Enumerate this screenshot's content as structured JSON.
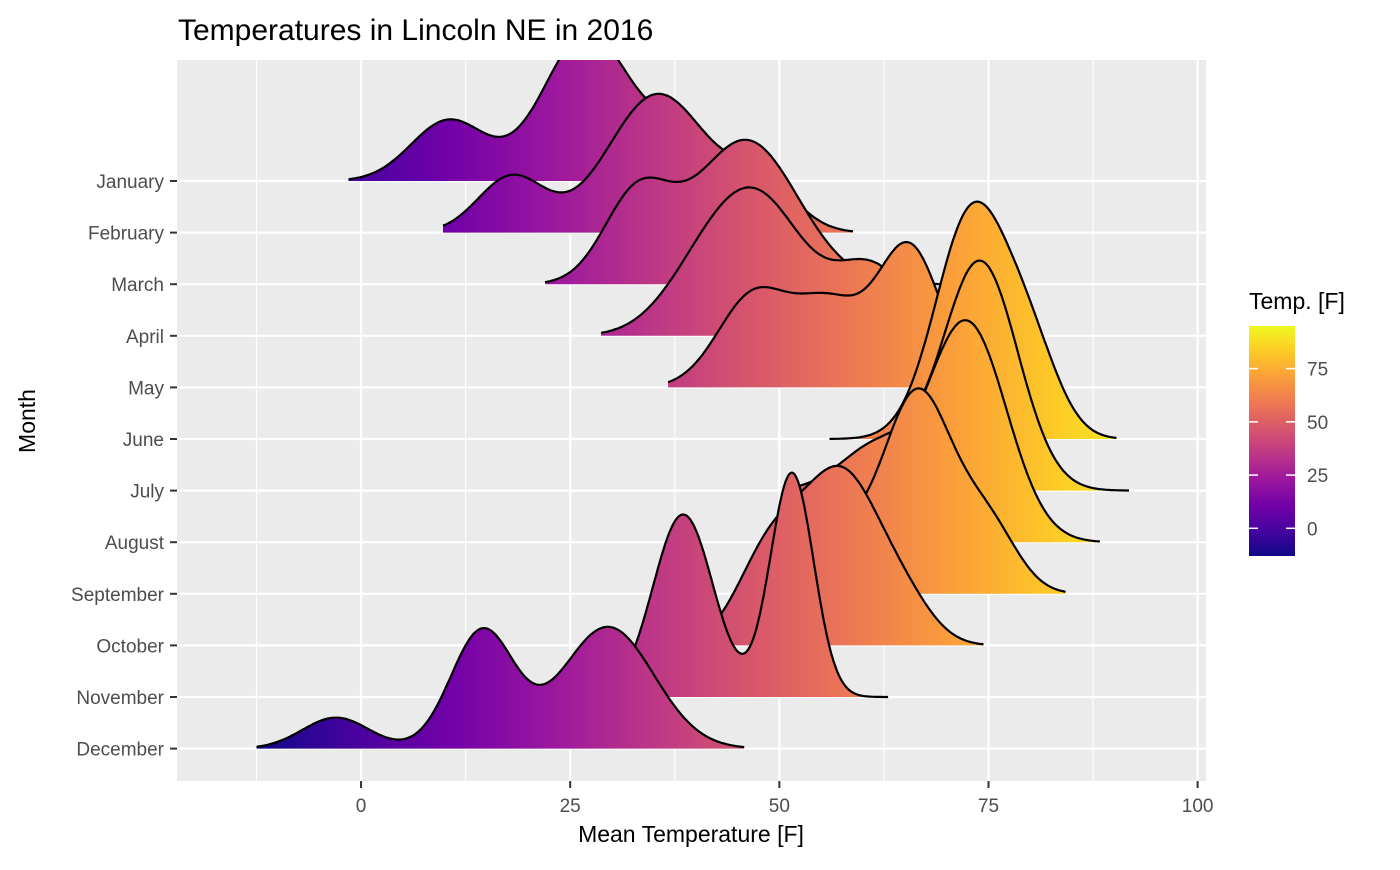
{
  "chart_data": {
    "type": "ridgeline",
    "title": "Temperatures in Lincoln NE in 2016",
    "xlabel": "Mean Temperature [F]",
    "ylabel": "Month",
    "xlim": [
      -22,
      101
    ],
    "x_ticks": [
      0,
      25,
      50,
      75,
      100
    ],
    "x_tick_labels": [
      "0",
      "25",
      "50",
      "75",
      "100"
    ],
    "categories": [
      "January",
      "February",
      "March",
      "April",
      "May",
      "June",
      "July",
      "August",
      "September",
      "October",
      "November",
      "December"
    ],
    "scale": 4.6,
    "legend": {
      "title": "Temp. [F]",
      "range": [
        -13,
        95
      ],
      "ticks": [
        0,
        25,
        50,
        75
      ],
      "tick_labels": [
        "0",
        "25",
        "50",
        "75"
      ],
      "palette": "plasma",
      "position": "right"
    },
    "series": [
      {
        "name": "January",
        "range": [
          -1.5,
          48.7
        ],
        "peaks": [
          {
            "x": 10.5,
            "sd": 4.5,
            "w": 0.22
          },
          {
            "x": 27,
            "sd": 5.2,
            "w": 0.62
          },
          {
            "x": 39,
            "sd": 4.2,
            "w": 0.16
          }
        ]
      },
      {
        "name": "February",
        "range": [
          9.8,
          58.8
        ],
        "peaks": [
          {
            "x": 18,
            "sd": 4,
            "w": 0.18
          },
          {
            "x": 35.5,
            "sd": 6,
            "w": 0.67
          },
          {
            "x": 48,
            "sd": 4,
            "w": 0.15
          }
        ]
      },
      {
        "name": "March",
        "range": [
          22,
          71
        ],
        "peaks": [
          {
            "x": 33,
            "sd": 4,
            "w": 0.28
          },
          {
            "x": 46,
            "sd": 6.2,
            "w": 0.72
          }
        ]
      },
      {
        "name": "April",
        "range": [
          28.7,
          77
        ],
        "peaks": [
          {
            "x": 41,
            "sd": 5,
            "w": 0.23
          },
          {
            "x": 48,
            "sd": 5.3,
            "w": 0.52
          },
          {
            "x": 61,
            "sd": 4.5,
            "w": 0.25
          }
        ]
      },
      {
        "name": "May",
        "range": [
          36.7,
          80
        ],
        "peaks": [
          {
            "x": 47,
            "sd": 4.3,
            "w": 0.32
          },
          {
            "x": 56,
            "sd": 4,
            "w": 0.25
          },
          {
            "x": 65.5,
            "sd": 3.8,
            "w": 0.43
          }
        ]
      },
      {
        "name": "June",
        "range": [
          56,
          90.3
        ],
        "peaks": [
          {
            "x": 73,
            "sd": 4.3,
            "w": 0.78
          },
          {
            "x": 80,
            "sd": 3.5,
            "w": 0.22
          }
        ]
      },
      {
        "name": "July",
        "range": [
          52.5,
          91.8
        ],
        "peaks": [
          {
            "x": 62,
            "sd": 4.5,
            "w": 0.17
          },
          {
            "x": 74,
            "sd": 4.5,
            "w": 0.83
          }
        ]
      },
      {
        "name": "August",
        "range": [
          57.5,
          88.3
        ],
        "peaks": [
          {
            "x": 63,
            "sd": 4.5,
            "w": 0.18
          },
          {
            "x": 72.5,
            "sd": 4.7,
            "w": 0.82
          }
        ]
      },
      {
        "name": "September",
        "range": [
          45,
          84.2
        ],
        "peaks": [
          {
            "x": 57,
            "sd": 3.5,
            "w": 0.14
          },
          {
            "x": 66.5,
            "sd": 4.2,
            "w": 0.68
          },
          {
            "x": 75,
            "sd": 3.5,
            "w": 0.18
          }
        ]
      },
      {
        "name": "October",
        "range": [
          38,
          74.4
        ],
        "peaks": [
          {
            "x": 49,
            "sd": 4,
            "w": 0.3
          },
          {
            "x": 57.5,
            "sd": 4.5,
            "w": 0.6
          },
          {
            "x": 65,
            "sd": 3.5,
            "w": 0.1
          }
        ]
      },
      {
        "name": "November",
        "range": [
          30.5,
          63
        ],
        "peaks": [
          {
            "x": 38.5,
            "sd": 3.6,
            "w": 0.53
          },
          {
            "x": 51.5,
            "sd": 2.6,
            "w": 0.47
          }
        ]
      },
      {
        "name": "December",
        "range": [
          -12.5,
          45.8
        ],
        "peaks": [
          {
            "x": -3,
            "sd": 4,
            "w": 0.1
          },
          {
            "x": 14.5,
            "sd": 3.8,
            "w": 0.36
          },
          {
            "x": 29.5,
            "sd": 5.5,
            "w": 0.54
          }
        ]
      }
    ]
  }
}
